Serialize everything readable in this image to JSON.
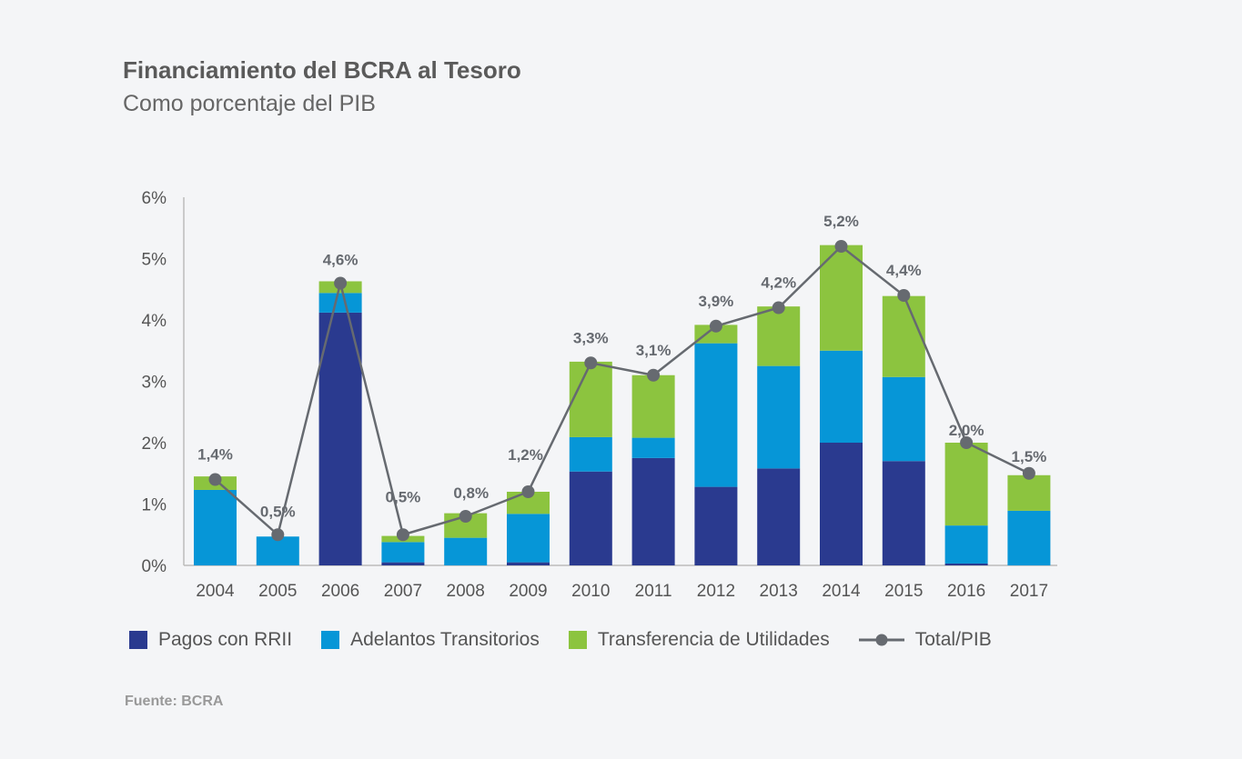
{
  "title": "Financiamiento del BCRA al Tesoro",
  "subtitle": "Como porcentaje del PIB",
  "source": "Fuente: BCRA",
  "colors": {
    "pagos": "#2a3a8f",
    "adelantos": "#0696d7",
    "transferencia": "#8cc43f",
    "total": "#666a70",
    "axis": "#bbbbbb"
  },
  "chart_data": {
    "type": "bar",
    "stacked": true,
    "categories": [
      "2004",
      "2005",
      "2006",
      "2007",
      "2008",
      "2009",
      "2010",
      "2011",
      "2012",
      "2013",
      "2014",
      "2015",
      "2016",
      "2017"
    ],
    "series": [
      {
        "name": "Pagos con RRII",
        "values": [
          0,
          0,
          4.12,
          0.05,
          0,
          0.05,
          1.53,
          1.75,
          1.28,
          1.58,
          2.0,
          1.7,
          0.03,
          0
        ]
      },
      {
        "name": "Adelantos Transitorios",
        "values": [
          1.23,
          0.47,
          0.32,
          0.33,
          0.45,
          0.79,
          0.56,
          0.33,
          2.34,
          1.67,
          1.5,
          1.37,
          0.62,
          0.89
        ]
      },
      {
        "name": "Transferencia de Utilidades",
        "values": [
          0.22,
          0,
          0.19,
          0.1,
          0.4,
          0.36,
          1.23,
          1.02,
          0.3,
          0.97,
          1.72,
          1.32,
          1.35,
          0.58
        ]
      }
    ],
    "line": {
      "name": "Total/PIB",
      "values": [
        1.4,
        0.5,
        4.6,
        0.5,
        0.8,
        1.2,
        3.3,
        3.1,
        3.9,
        4.2,
        5.2,
        4.4,
        2.0,
        1.5
      ],
      "labels": [
        "1,4%",
        "0,5%",
        "4,6%",
        "0,5%",
        "0,8%",
        "1,2%",
        "3,3%",
        "3,1%",
        "3,9%",
        "4,2%",
        "5,2%",
        "4,4%",
        "2,0%",
        "1,5%"
      ]
    },
    "yticks": [
      0,
      1,
      2,
      3,
      4,
      5,
      6
    ],
    "ytick_labels": [
      "0%",
      "1%",
      "2%",
      "3%",
      "4%",
      "5%",
      "6%"
    ],
    "ylim": [
      0,
      6
    ],
    "grid": false,
    "legend_position": "bottom"
  }
}
